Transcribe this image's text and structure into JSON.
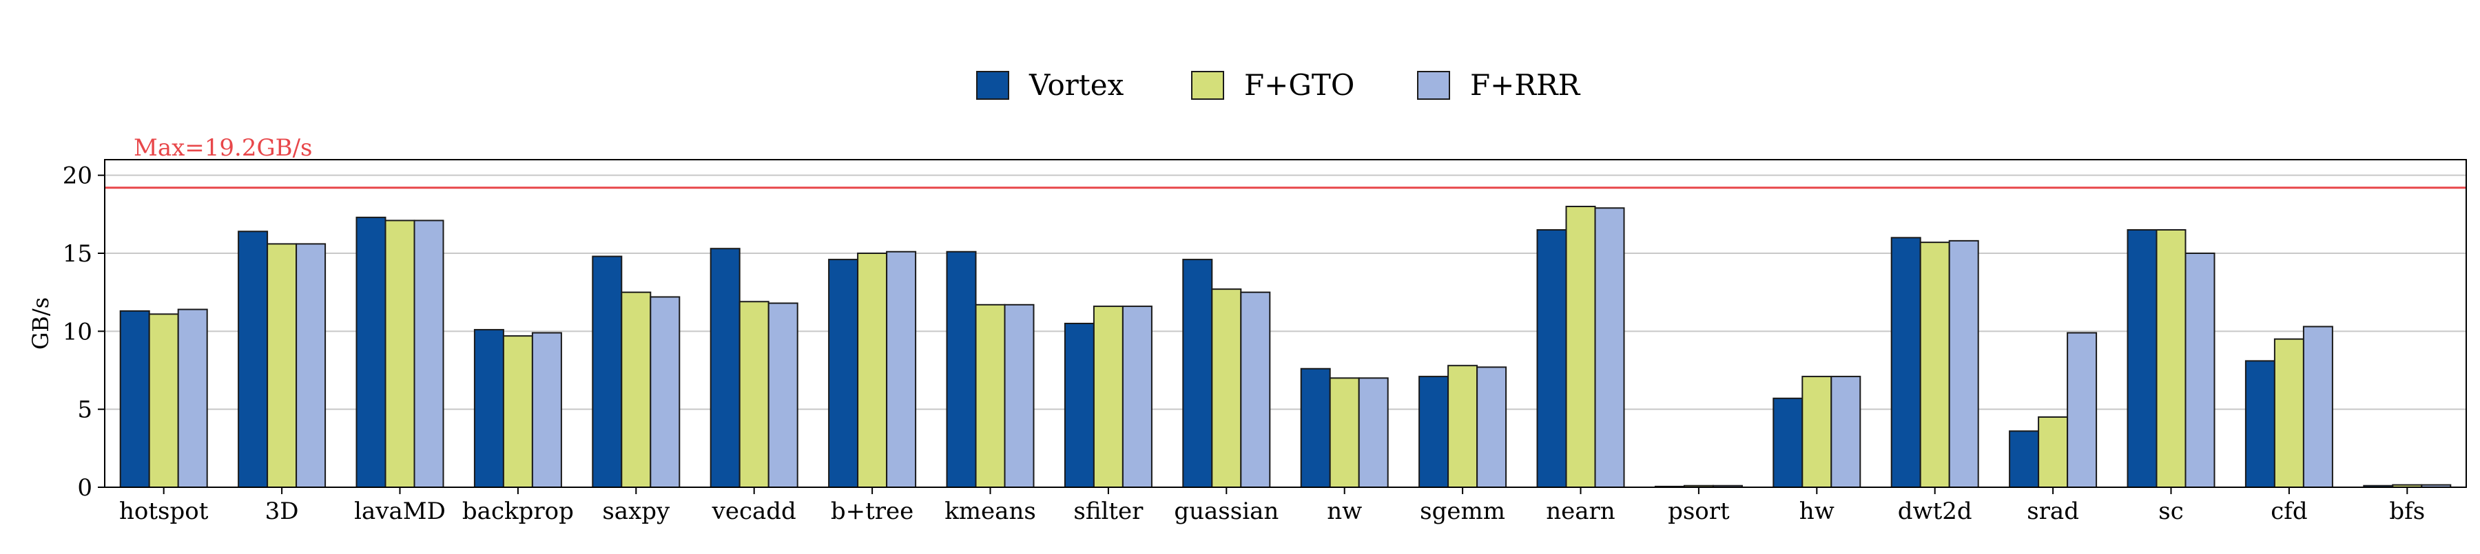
{
  "chart_data": {
    "type": "bar",
    "categories": [
      "hotspot",
      "3D",
      "lavaMD",
      "backprop",
      "saxpy",
      "vecadd",
      "b+tree",
      "kmeans",
      "sfilter",
      "guassian",
      "nw",
      "sgemm",
      "nearn",
      "psort",
      "hw",
      "dwt2d",
      "srad",
      "sc",
      "cfd",
      "bfs"
    ],
    "series": [
      {
        "name": "Vortex",
        "color": "#0a4f9c",
        "values": [
          11.3,
          16.4,
          17.3,
          10.1,
          14.8,
          15.3,
          14.6,
          15.1,
          10.5,
          14.6,
          7.6,
          7.1,
          16.5,
          0.05,
          5.7,
          16.0,
          3.6,
          16.5,
          8.1,
          0.1
        ]
      },
      {
        "name": "F+GTO",
        "color": "#d4df7a",
        "values": [
          11.1,
          15.6,
          17.1,
          9.7,
          12.5,
          11.9,
          15.0,
          11.7,
          11.6,
          12.7,
          7.0,
          7.8,
          18.0,
          0.1,
          7.1,
          15.7,
          4.5,
          16.5,
          9.5,
          0.15
        ]
      },
      {
        "name": "F+RRR",
        "color": "#a0b4e0",
        "values": [
          11.4,
          15.6,
          17.1,
          9.9,
          12.2,
          11.8,
          15.1,
          11.7,
          11.6,
          12.5,
          7.0,
          7.7,
          17.9,
          0.1,
          7.1,
          15.8,
          9.9,
          15.0,
          10.3,
          0.15
        ]
      }
    ],
    "xlabel": "",
    "ylabel": "GB/s",
    "ylim": [
      0,
      21
    ],
    "yticks": [
      0,
      5,
      10,
      15,
      20
    ],
    "grid": true,
    "legend_position": "top-center",
    "reference_line": {
      "value": 19.2,
      "label": "Max=19.2GB/s",
      "color": "#e8474a"
    }
  }
}
